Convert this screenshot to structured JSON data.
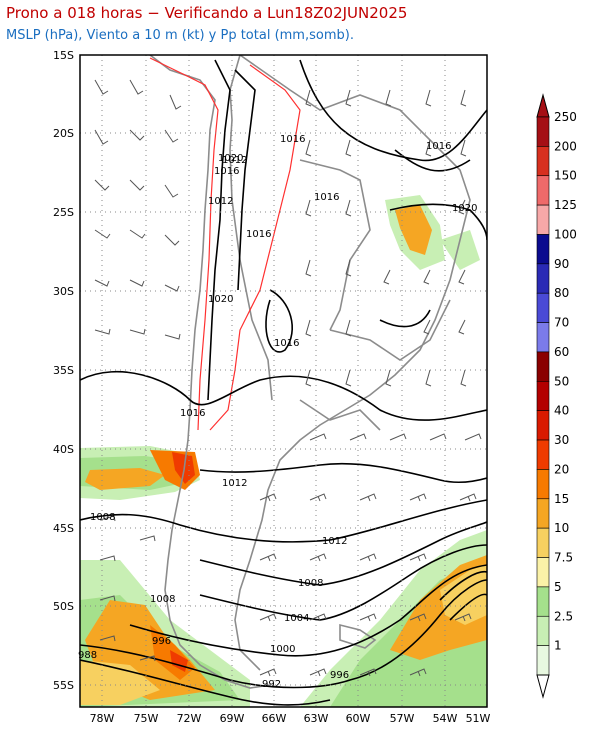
{
  "title": {
    "line1": "Prono a 018 horas − Verificando a Lun18Z02JUN2025",
    "line2": "MSLP (hPa), Viento a 10 m (kt) y Pp total (mm,somb)."
  },
  "map": {
    "lat_labels": [
      "15S",
      "20S",
      "25S",
      "30S",
      "35S",
      "40S",
      "45S",
      "50S",
      "55S"
    ],
    "lon_labels": [
      "78W",
      "75W",
      "72W",
      "69W",
      "66W",
      "63W",
      "60W",
      "57W",
      "54W",
      "51W"
    ],
    "pressure_labels": [
      "1016",
      "1012",
      "1020",
      "1016",
      "1012",
      "1016",
      "1016",
      "1020",
      "1016",
      "1020",
      "1016",
      "1016",
      "1012",
      "1008",
      "1012",
      "1008",
      "1008",
      "1004",
      "996",
      "1000",
      "988",
      "992",
      "996"
    ]
  },
  "colorbar": {
    "labels": [
      "250",
      "200",
      "150",
      "125",
      "100",
      "90",
      "80",
      "70",
      "60",
      "50",
      "40",
      "30",
      "20",
      "15",
      "10",
      "7.5",
      "5",
      "2.5",
      "1"
    ],
    "colors": [
      "#a50f15",
      "#d7301f",
      "#ef6a6a",
      "#f7a8a8",
      "#0b0b8f",
      "#2a2ab5",
      "#4a4ad6",
      "#7b7bea",
      "#8a0000",
      "#b30000",
      "#d91a00",
      "#ef3b00",
      "#f77a00",
      "#f5a623",
      "#f7d060",
      "#fbf2a8",
      "#a5e08c",
      "#c8efb4",
      "#e8f8e0"
    ]
  }
}
